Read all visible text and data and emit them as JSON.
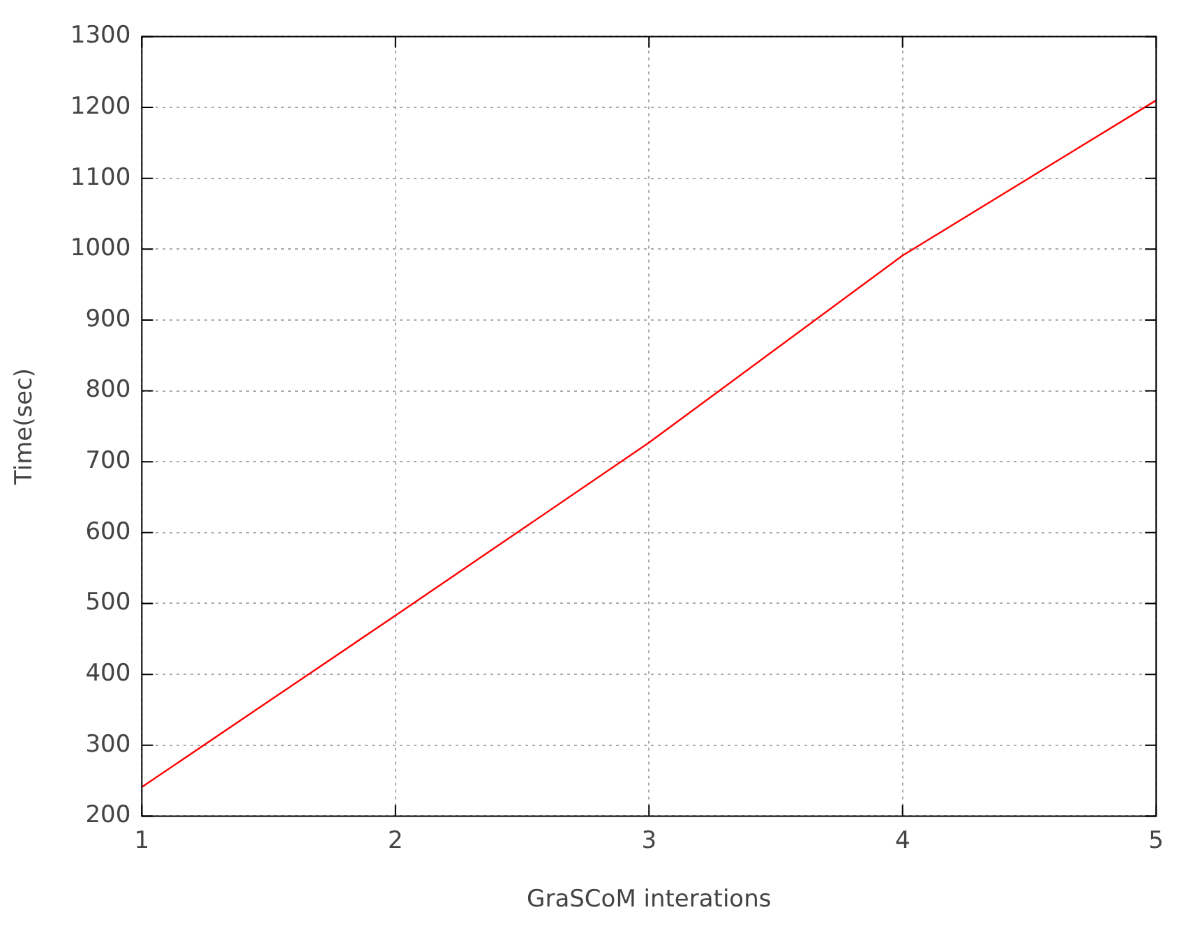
{
  "chart_data": {
    "type": "line",
    "xlabel": "GraSCoM interations",
    "ylabel": "Time(sec)",
    "x": [
      1,
      2,
      3,
      4,
      5
    ],
    "series": [
      {
        "color": "#ff0000",
        "values": [
          241,
          483,
          727,
          991,
          1210
        ]
      }
    ],
    "xlim": [
      1,
      5
    ],
    "xticks": [
      1,
      2,
      3,
      4,
      5
    ],
    "ylim": [
      200,
      1300
    ],
    "yticks": [
      200,
      300,
      400,
      500,
      600,
      700,
      800,
      900,
      1000,
      1100,
      1200,
      1300
    ],
    "grid": true,
    "legend": false,
    "marker": "none",
    "line_style": "solid"
  }
}
